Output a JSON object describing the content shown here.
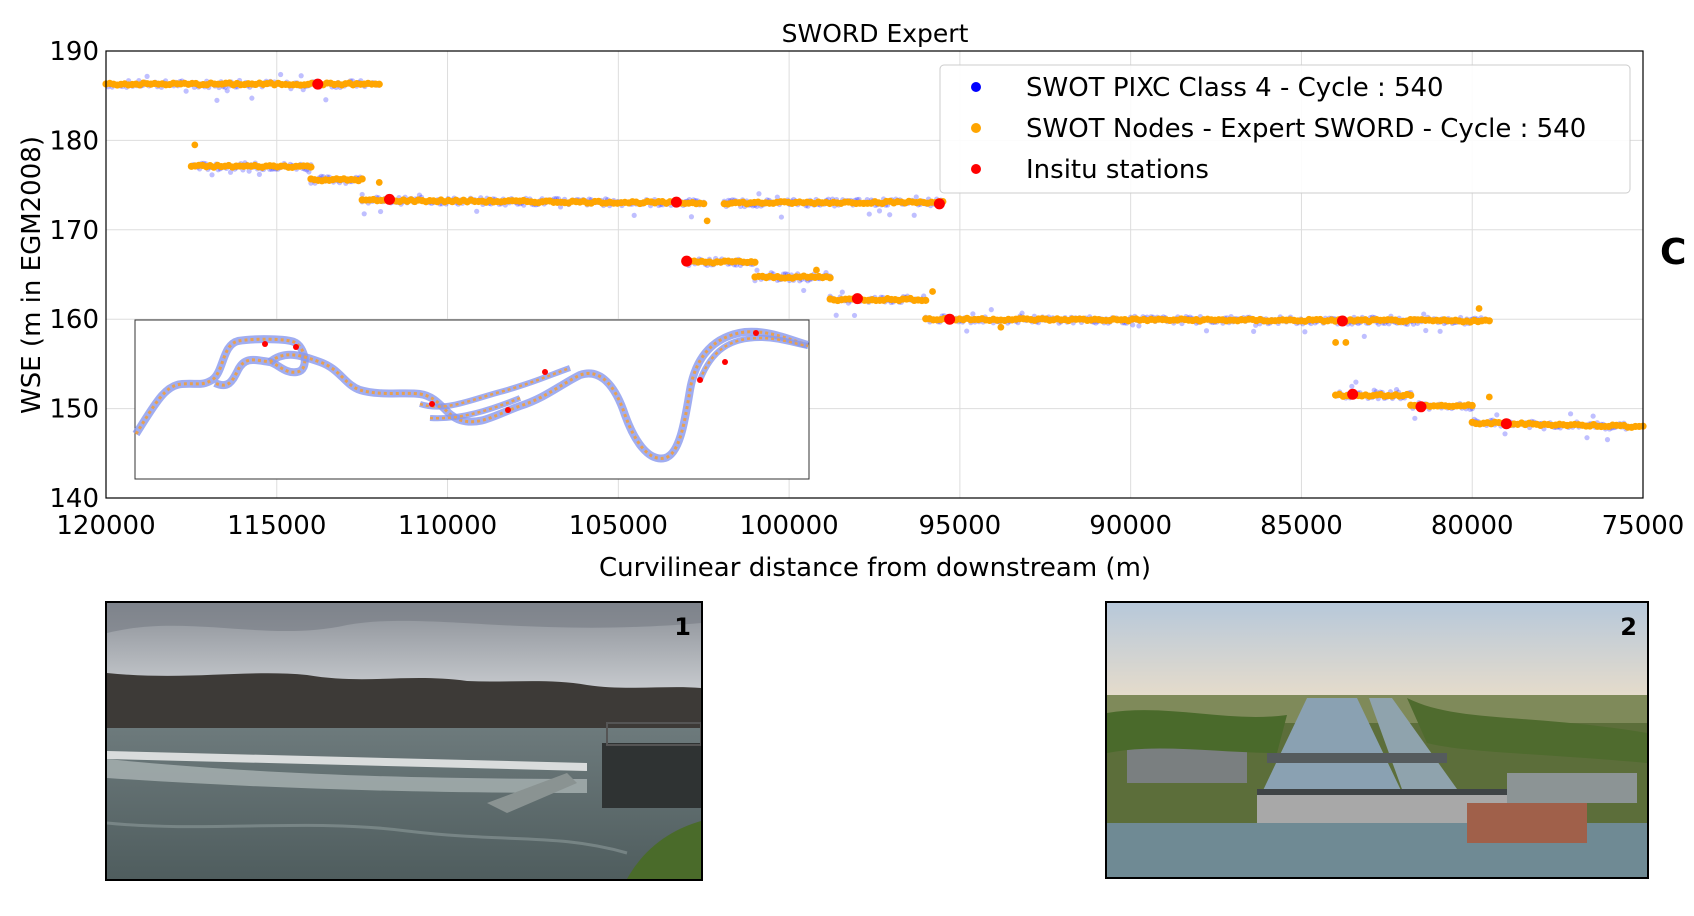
{
  "panel_letter": "C",
  "chart_data": {
    "type": "scatter",
    "title": "SWORD Expert",
    "xlabel": "Curvilinear distance from downstream (m)",
    "ylabel": "WSE (m in EGM2008)",
    "xlim": [
      120000,
      75000
    ],
    "ylim": [
      140,
      190
    ],
    "x_ticks": [
      120000,
      115000,
      110000,
      105000,
      100000,
      95000,
      90000,
      85000,
      80000,
      75000
    ],
    "y_ticks": [
      140,
      150,
      160,
      170,
      180,
      190
    ],
    "grid": true,
    "legend_position": "top-right",
    "colors": {
      "pixc": "#0000ff",
      "nodes": "#ffa500",
      "insitu": "#ff0000"
    },
    "series": [
      {
        "name": "SWOT PIXC Class 4 - Cycle : 540",
        "kind": "pixc",
        "segments": [
          {
            "x": [
              120000,
              112000
            ],
            "y": [
              186.3,
              186.3
            ]
          },
          {
            "x": [
              117500,
              114000
            ],
            "y": [
              177.1,
              177.1
            ]
          },
          {
            "x": [
              114000,
              112500
            ],
            "y": [
              175.6,
              175.6
            ]
          },
          {
            "x": [
              112500,
              102500
            ],
            "y": [
              173.3,
              173.0
            ]
          },
          {
            "x": [
              101900,
              95500
            ],
            "y": [
              173.0,
              173.1
            ]
          },
          {
            "x": [
              103000,
              101000
            ],
            "y": [
              166.4,
              166.4
            ]
          },
          {
            "x": [
              101000,
              98800
            ],
            "y": [
              164.7,
              164.7
            ]
          },
          {
            "x": [
              98800,
              96000
            ],
            "y": [
              162.2,
              162.2
            ]
          },
          {
            "x": [
              96000,
              79500
            ],
            "y": [
              160.0,
              159.8
            ]
          },
          {
            "x": [
              84000,
              81800
            ],
            "y": [
              151.5,
              151.5
            ]
          },
          {
            "x": [
              81800,
              80000
            ],
            "y": [
              150.3,
              150.3
            ]
          },
          {
            "x": [
              80000,
              75500
            ],
            "y": [
              148.4,
              148.0
            ]
          }
        ]
      },
      {
        "name": "SWOT Nodes - Expert SWORD - Cycle : 540",
        "kind": "nodes",
        "segments": [
          {
            "x": [
              120000,
              112000
            ],
            "y": [
              186.3,
              186.3
            ]
          },
          {
            "x": [
              117500,
              114000
            ],
            "y": [
              177.1,
              177.1
            ]
          },
          {
            "x": [
              114000,
              112500
            ],
            "y": [
              175.6,
              175.6
            ]
          },
          {
            "x": [
              112500,
              102500
            ],
            "y": [
              173.3,
              173.0
            ]
          },
          {
            "x": [
              101900,
              95500
            ],
            "y": [
              173.0,
              173.1
            ]
          },
          {
            "x": [
              103000,
              101000
            ],
            "y": [
              166.4,
              166.4
            ]
          },
          {
            "x": [
              101000,
              98800
            ],
            "y": [
              164.7,
              164.7
            ]
          },
          {
            "x": [
              98800,
              96000
            ],
            "y": [
              162.2,
              162.2
            ]
          },
          {
            "x": [
              96000,
              79500
            ],
            "y": [
              160.0,
              159.8
            ]
          },
          {
            "x": [
              84000,
              81800
            ],
            "y": [
              151.5,
              151.5
            ]
          },
          {
            "x": [
              81800,
              80000
            ],
            "y": [
              150.3,
              150.3
            ]
          },
          {
            "x": [
              80000,
              75000
            ],
            "y": [
              148.4,
              148.0
            ]
          }
        ],
        "outliers": [
          {
            "x": 117400,
            "y": 179.5
          },
          {
            "x": 102400,
            "y": 171.0
          },
          {
            "x": 99200,
            "y": 165.5
          },
          {
            "x": 95800,
            "y": 163.1
          },
          {
            "x": 93800,
            "y": 159.1
          },
          {
            "x": 84000,
            "y": 157.4
          },
          {
            "x": 83700,
            "y": 157.4
          },
          {
            "x": 79800,
            "y": 161.2
          },
          {
            "x": 79500,
            "y": 151.3
          },
          {
            "x": 112000,
            "y": 175.3
          }
        ]
      },
      {
        "name": "Insitu stations",
        "kind": "insitu",
        "points": [
          {
            "x": 113800,
            "y": 186.3
          },
          {
            "x": 111700,
            "y": 173.4
          },
          {
            "x": 103300,
            "y": 173.1
          },
          {
            "x": 95600,
            "y": 172.9
          },
          {
            "x": 103000,
            "y": 166.5
          },
          {
            "x": 98000,
            "y": 162.3
          },
          {
            "x": 95300,
            "y": 160.0
          },
          {
            "x": 83800,
            "y": 159.8
          },
          {
            "x": 83500,
            "y": 151.6
          },
          {
            "x": 81500,
            "y": 150.2
          },
          {
            "x": 79000,
            "y": 148.3
          }
        ]
      }
    ]
  },
  "photos": [
    {
      "number": "1",
      "subject": "weir-on-river"
    },
    {
      "number": "2",
      "subject": "aerial-dam-and-lock"
    }
  ]
}
